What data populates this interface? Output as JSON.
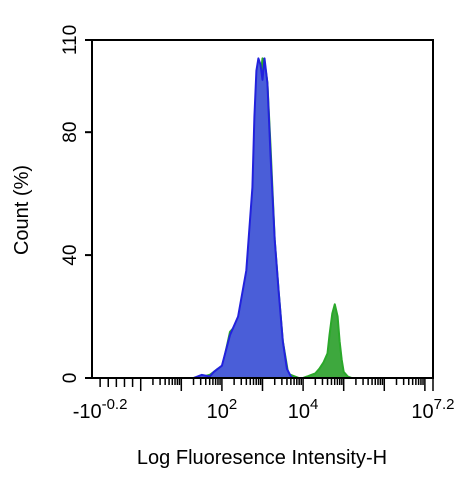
{
  "chart_data": {
    "type": "area",
    "xlabel": "Log Fluoresence Intensity-H",
    "ylabel": "Count  (%)",
    "x_scale": "log",
    "xlim": [
      -1.2,
      7.2
    ],
    "ylim": [
      0,
      110
    ],
    "yticks": [
      {
        "value": 0,
        "label": "0"
      },
      {
        "value": 40,
        "label": "40"
      },
      {
        "value": 80,
        "label": "80"
      },
      {
        "value": 110,
        "label": "110"
      }
    ],
    "xtick_labels": [
      {
        "value": -1.0,
        "base": "-10",
        "exp": "-0.2"
      },
      {
        "value": 2,
        "base": "10",
        "exp": "2"
      },
      {
        "value": 4,
        "base": "10",
        "exp": "4"
      },
      {
        "value": 7.2,
        "base": "10",
        "exp": "7.2"
      }
    ],
    "series": [
      {
        "color": "#2aa82a",
        "fill": "#3ea83e",
        "x": [
          1.3,
          1.55,
          1.7,
          1.8,
          1.9,
          2.0,
          2.2,
          2.4,
          2.6,
          2.75,
          2.85,
          2.95,
          3.0,
          3.05,
          3.12,
          3.2,
          3.3,
          3.4,
          3.5,
          3.6,
          3.65,
          3.7,
          3.8,
          3.9,
          4.0,
          4.1,
          4.2,
          4.3,
          4.4,
          4.5,
          4.6,
          4.65,
          4.72,
          4.78,
          4.85,
          4.9,
          4.95,
          5.0,
          5.1,
          5.2,
          5.3
        ],
        "values": [
          0,
          0.5,
          1,
          2,
          3,
          3,
          15,
          18,
          30,
          55,
          75,
          98,
          104,
          103,
          96,
          75,
          45,
          28,
          12,
          4,
          0,
          1,
          0.5,
          0,
          0,
          0.5,
          1,
          1.5,
          3,
          5,
          8,
          14,
          21,
          24,
          20,
          12,
          6,
          2,
          0.5,
          0,
          0
        ]
      },
      {
        "color": "#2222dd",
        "fill": "#4a5ed8",
        "x": [
          1.3,
          1.5,
          1.7,
          1.8,
          1.9,
          2.0,
          2.2,
          2.4,
          2.6,
          2.75,
          2.8,
          2.85,
          2.9,
          2.95,
          3.0,
          3.05,
          3.12,
          3.2,
          3.3,
          3.4,
          3.5,
          3.6,
          3.7,
          3.75
        ],
        "values": [
          0,
          1,
          0.5,
          2,
          3,
          4,
          14,
          20,
          35,
          62,
          85,
          100,
          104,
          102,
          97,
          104,
          96,
          72,
          45,
          28,
          12,
          3,
          0.5,
          0
        ]
      }
    ]
  }
}
